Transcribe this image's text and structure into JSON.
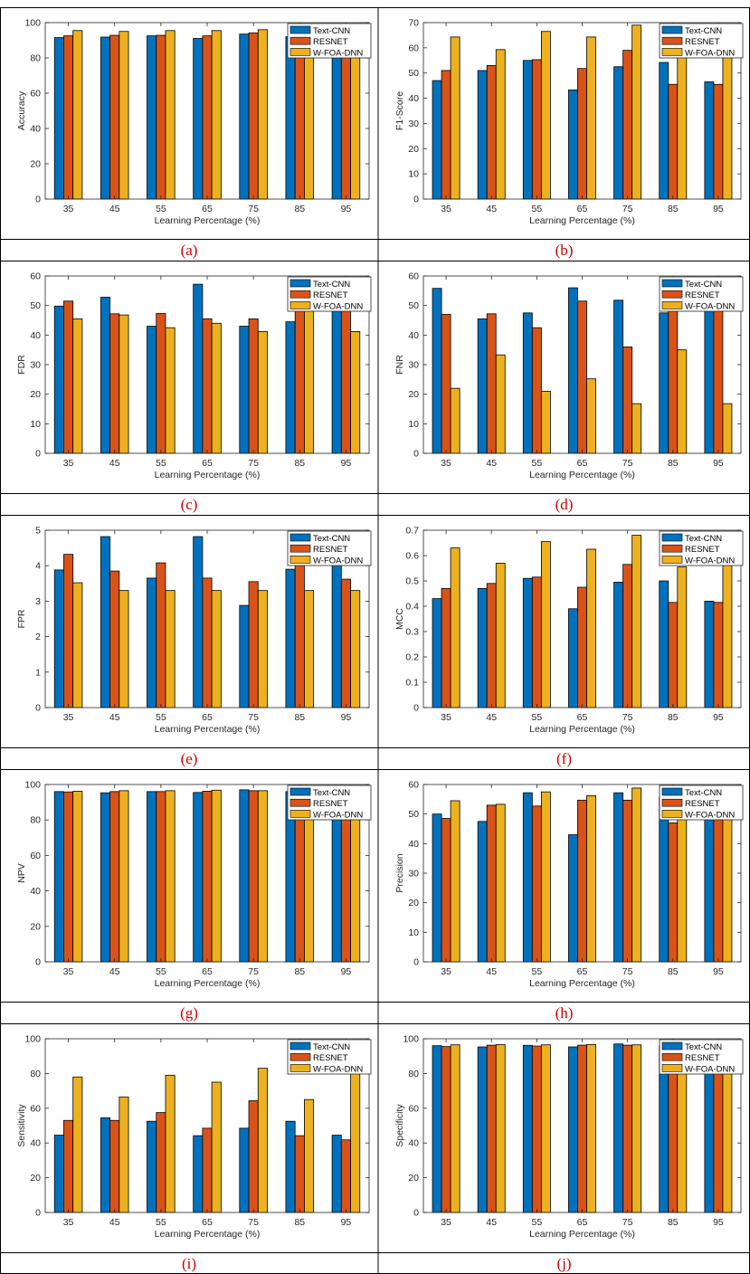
{
  "colors": {
    "series": [
      "#0072BD",
      "#D95319",
      "#EDB120"
    ],
    "caption": "#cc0000"
  },
  "chart_data": [
    {
      "type": "bar",
      "caption": "(a)",
      "xlabel": "Learning Percentage (%)",
      "ylabel": "Accuracy",
      "ylim": [
        0,
        100
      ],
      "yticks": [
        "0",
        "20",
        "40",
        "60",
        "80",
        "100"
      ],
      "categories": [
        "35",
        "45",
        "55",
        "65",
        "75",
        "85",
        "95"
      ],
      "legend_position": "top-right",
      "series": [
        {
          "name": "Text-CNN",
          "values": [
            91.5,
            91.8,
            92.5,
            91,
            93.5,
            92,
            91.5
          ]
        },
        {
          "name": "RESNET",
          "values": [
            92.5,
            92.8,
            92.8,
            92.5,
            94.2,
            91.8,
            91.8
          ]
        },
        {
          "name": "W-FOA-DNN",
          "values": [
            95.5,
            95,
            95.5,
            95.5,
            96,
            94.8,
            95.8
          ]
        }
      ]
    },
    {
      "type": "bar",
      "caption": "(b)",
      "xlabel": "Learning Percentage (%)",
      "ylabel": "F1-Score",
      "ylim": [
        0,
        70
      ],
      "yticks": [
        "0",
        "10",
        "20",
        "30",
        "40",
        "50",
        "60",
        "70"
      ],
      "categories": [
        "35",
        "45",
        "55",
        "65",
        "75",
        "85",
        "95"
      ],
      "legend_position": "top-right",
      "series": [
        {
          "name": "Text-CNN",
          "values": [
            47,
            51,
            55,
            43.3,
            52.5,
            54.2,
            46.5
          ]
        },
        {
          "name": "RESNET",
          "values": [
            51,
            53,
            55.3,
            51.8,
            59,
            45.5,
            45.5
          ]
        },
        {
          "name": "W-FOA-DNN",
          "values": [
            64.3,
            59.3,
            66.5,
            64.3,
            69,
            57.8,
            69
          ]
        }
      ]
    },
    {
      "type": "bar",
      "caption": "(c)",
      "xlabel": "Learning Percentage (%)",
      "ylabel": "FDR",
      "ylim": [
        0,
        60
      ],
      "yticks": [
        "0",
        "10",
        "20",
        "30",
        "40",
        "50",
        "60"
      ],
      "categories": [
        "35",
        "45",
        "55",
        "65",
        "75",
        "85",
        "95"
      ],
      "legend_position": "top-right",
      "series": [
        {
          "name": "Text-CNN",
          "values": [
            49.8,
            52.8,
            43,
            57.2,
            43,
            44.5,
            51.5
          ]
        },
        {
          "name": "RESNET",
          "values": [
            51.5,
            47.2,
            47.3,
            45.5,
            45.5,
            53.2,
            50
          ]
        },
        {
          "name": "W-FOA-DNN",
          "values": [
            45.5,
            46.8,
            42.5,
            44,
            41.2,
            48.3,
            41.2
          ]
        }
      ]
    },
    {
      "type": "bar",
      "caption": "(d)",
      "xlabel": "Learning Percentage (%)",
      "ylabel": "FNR",
      "ylim": [
        0,
        60
      ],
      "yticks": [
        "0",
        "10",
        "20",
        "30",
        "40",
        "50",
        "60"
      ],
      "categories": [
        "35",
        "45",
        "55",
        "65",
        "75",
        "85",
        "95"
      ],
      "legend_position": "top-right",
      "series": [
        {
          "name": "Text-CNN",
          "values": [
            55.8,
            45.5,
            47.5,
            56,
            51.8,
            47.5,
            55.8
          ]
        },
        {
          "name": "RESNET",
          "values": [
            47,
            47.2,
            42.5,
            51.5,
            36,
            56,
            58.5
          ]
        },
        {
          "name": "W-FOA-DNN",
          "values": [
            22,
            33.3,
            21,
            25.2,
            16.8,
            35,
            16.8
          ]
        }
      ]
    },
    {
      "type": "bar",
      "caption": "(e)",
      "xlabel": "Learning Percentage (%)",
      "ylabel": "FPR",
      "ylim": [
        0,
        5
      ],
      "yticks": [
        "0",
        "1",
        "2",
        "3",
        "4",
        "5"
      ],
      "categories": [
        "35",
        "45",
        "55",
        "65",
        "75",
        "85",
        "95"
      ],
      "legend_position": "top-right",
      "series": [
        {
          "name": "Text-CNN",
          "values": [
            3.88,
            4.82,
            3.65,
            4.82,
            2.88,
            3.9,
            4.12
          ]
        },
        {
          "name": "RESNET",
          "values": [
            4.32,
            3.85,
            4.08,
            3.65,
            3.55,
            4.1,
            3.62
          ]
        },
        {
          "name": "W-FOA-DNN",
          "values": [
            3.52,
            3.3,
            3.3,
            3.3,
            3.3,
            3.3,
            3.3
          ]
        }
      ]
    },
    {
      "type": "bar",
      "caption": "(f)",
      "xlabel": "Learning Percentage (%)",
      "ylabel": "MCC",
      "ylim": [
        0,
        0.7
      ],
      "yticks": [
        "0",
        "0.1",
        "0.2",
        "0.3",
        "0.4",
        "0.5",
        "0.6",
        "0.7"
      ],
      "categories": [
        "35",
        "45",
        "55",
        "65",
        "75",
        "85",
        "95"
      ],
      "legend_position": "top-right",
      "series": [
        {
          "name": "Text-CNN",
          "values": [
            0.43,
            0.47,
            0.51,
            0.39,
            0.495,
            0.5,
            0.42
          ]
        },
        {
          "name": "RESNET",
          "values": [
            0.47,
            0.49,
            0.515,
            0.475,
            0.565,
            0.415,
            0.415
          ]
        },
        {
          "name": "W-FOA-DNN",
          "values": [
            0.63,
            0.57,
            0.655,
            0.625,
            0.68,
            0.555,
            0.68
          ]
        }
      ]
    },
    {
      "type": "bar",
      "caption": "(g)",
      "xlabel": "Learning Percentage (%)",
      "ylabel": "NPV",
      "ylim": [
        0,
        100
      ],
      "yticks": [
        "0",
        "20",
        "40",
        "60",
        "80",
        "100"
      ],
      "categories": [
        "35",
        "45",
        "55",
        "65",
        "75",
        "85",
        "95"
      ],
      "legend_position": "top-right",
      "series": [
        {
          "name": "Text-CNN",
          "values": [
            96,
            95.3,
            96,
            95.5,
            97,
            96,
            96
          ]
        },
        {
          "name": "RESNET",
          "values": [
            95.8,
            96,
            96,
            96.2,
            96.5,
            95.8,
            96.2
          ]
        },
        {
          "name": "W-FOA-DNN",
          "values": [
            96.2,
            96.5,
            96.5,
            96.8,
            96.5,
            96.5,
            96.5
          ]
        }
      ]
    },
    {
      "type": "bar",
      "caption": "(h)",
      "xlabel": "Learning Percentage (%)",
      "ylabel": "Precision",
      "ylim": [
        0,
        60
      ],
      "yticks": [
        "0",
        "10",
        "20",
        "30",
        "40",
        "50",
        "60"
      ],
      "categories": [
        "35",
        "45",
        "55",
        "65",
        "75",
        "85",
        "95"
      ],
      "legend_position": "top-right",
      "series": [
        {
          "name": "Text-CNN",
          "values": [
            50,
            47.5,
            57.2,
            43,
            57.2,
            55.7,
            48.5
          ]
        },
        {
          "name": "RESNET",
          "values": [
            48.5,
            53,
            52.7,
            54.7,
            54.7,
            47,
            50
          ]
        },
        {
          "name": "W-FOA-DNN",
          "values": [
            54.5,
            53.3,
            57.5,
            56.2,
            58.8,
            51.7,
            58.8
          ]
        }
      ]
    },
    {
      "type": "bar",
      "caption": "(i)",
      "xlabel": "Learning Percentage (%)",
      "ylabel": "Sensitivity",
      "ylim": [
        0,
        100
      ],
      "yticks": [
        "0",
        "20",
        "40",
        "60",
        "80",
        "100"
      ],
      "categories": [
        "35",
        "45",
        "55",
        "65",
        "75",
        "85",
        "95"
      ],
      "legend_position": "top-right",
      "series": [
        {
          "name": "Text-CNN",
          "values": [
            44.5,
            54.5,
            52.5,
            44.2,
            48.5,
            52.5,
            44.5
          ]
        },
        {
          "name": "RESNET",
          "values": [
            53,
            53,
            57.5,
            48.5,
            64.3,
            44.2,
            41.8
          ]
        },
        {
          "name": "W-FOA-DNN",
          "values": [
            78,
            66.5,
            79,
            75,
            83,
            65,
            83
          ]
        }
      ]
    },
    {
      "type": "bar",
      "caption": "(j)",
      "xlabel": "Learning Percentage (%)",
      "ylabel": "Specificity",
      "ylim": [
        0,
        100
      ],
      "yticks": [
        "0",
        "20",
        "40",
        "60",
        "80",
        "100"
      ],
      "categories": [
        "35",
        "45",
        "55",
        "65",
        "75",
        "85",
        "95"
      ],
      "legend_position": "top-right",
      "series": [
        {
          "name": "Text-CNN",
          "values": [
            96,
            95.3,
            96.2,
            95.3,
            97,
            96,
            96
          ]
        },
        {
          "name": "RESNET",
          "values": [
            95.5,
            96.3,
            95.8,
            96.3,
            96.3,
            95.8,
            96.3
          ]
        },
        {
          "name": "W-FOA-DNN",
          "values": [
            96.5,
            96.6,
            96.5,
            96.7,
            96.5,
            96.6,
            96.5
          ]
        }
      ]
    }
  ]
}
